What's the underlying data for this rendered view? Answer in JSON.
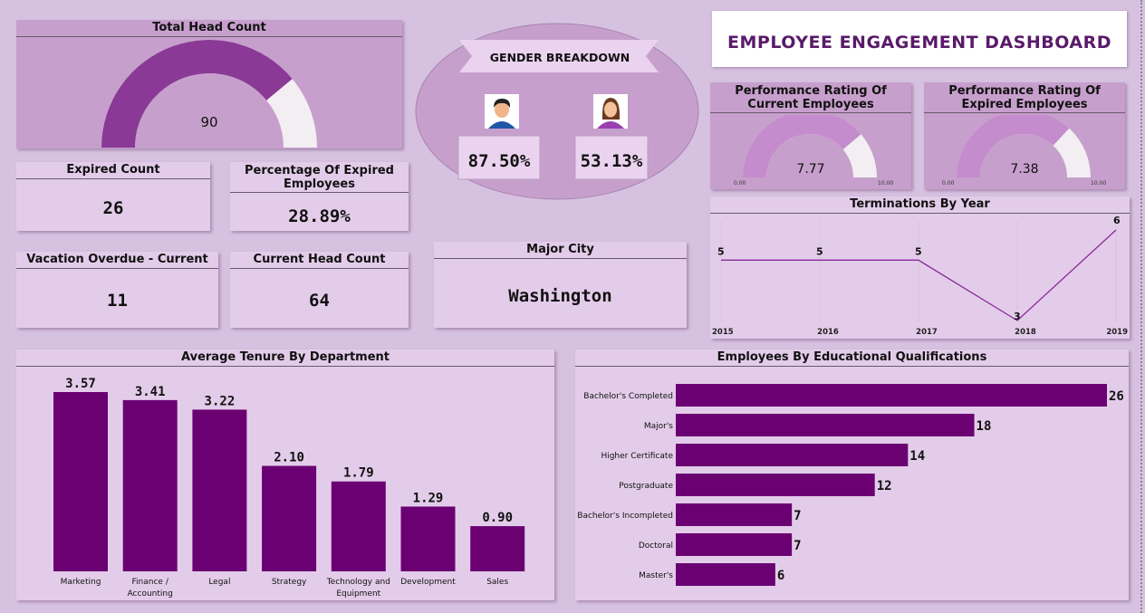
{
  "dashboard_title": "EMPLOYEE ENGAGEMENT DASHBOARD",
  "colors": {
    "accent": "#6a0072",
    "gauge_fill": "#8a3a96",
    "gauge_fill_light": "#c48ccc",
    "gauge_track": "#f2eef2",
    "background": "#d7c1e1"
  },
  "total_head_count": {
    "title": "Total Head Count",
    "value": "90",
    "fill_fraction": 0.78
  },
  "expired_count": {
    "title": "Expired Count",
    "value": "26"
  },
  "percentage_expired": {
    "title": "Percentage Of Expired Employees",
    "value": "28.89%"
  },
  "vacation_overdue": {
    "title": "Vacation Overdue - Current",
    "value": "11"
  },
  "current_head_count": {
    "title": "Current Head Count",
    "value": "64"
  },
  "major_city": {
    "title": "Major City",
    "value": "Washington"
  },
  "gender": {
    "title": "GENDER BREAKDOWN",
    "male_icon": "male-avatar-icon",
    "female_icon": "female-avatar-icon",
    "male_value": "87.50%",
    "female_value": "53.13%"
  },
  "perf_current": {
    "title": "Performance Rating Of Current Employees",
    "value": "7.77",
    "min": "0.00",
    "max": "10.00",
    "fill_fraction": 0.777
  },
  "perf_expired": {
    "title": "Performance Rating Of Expired Employees",
    "value": "7.38",
    "min": "0.00",
    "max": "10.00",
    "fill_fraction": 0.738
  },
  "chart_data": [
    {
      "type": "line",
      "title": "Terminations By Year",
      "x": [
        "2015",
        "2016",
        "2017",
        "2018",
        "2019"
      ],
      "values": [
        5,
        5,
        5,
        3,
        6
      ],
      "ylim": [
        3,
        6
      ]
    },
    {
      "type": "bar",
      "title": "Average Tenure By Department",
      "categories": [
        "Marketing",
        "Finance / Accounting",
        "Legal",
        "Strategy",
        "Technology and Equipment",
        "Development",
        "Sales"
      ],
      "category_lines": [
        [
          "Marketing"
        ],
        [
          "Finance /",
          "Accounting"
        ],
        [
          "Legal"
        ],
        [
          "Strategy"
        ],
        [
          "Technology and",
          "Equipment"
        ],
        [
          "Development"
        ],
        [
          "Sales"
        ]
      ],
      "values": [
        3.57,
        3.41,
        3.22,
        2.1,
        1.79,
        1.29,
        0.9
      ],
      "labels": [
        "3.57",
        "3.41",
        "3.22",
        "2.10",
        "1.79",
        "1.29",
        "0.90"
      ],
      "ylim": [
        0,
        3.57
      ]
    },
    {
      "type": "bar",
      "orientation": "horizontal",
      "title": "Employees By Educational Qualifications",
      "categories": [
        "Bachelor's Completed",
        "Major's",
        "Higher Certificate",
        "Postgraduate",
        "Bachelor's Incompleted",
        "Doctoral",
        "Master's"
      ],
      "values": [
        26,
        18,
        14,
        12,
        7,
        7,
        6
      ],
      "xlim": [
        0,
        26
      ]
    }
  ]
}
